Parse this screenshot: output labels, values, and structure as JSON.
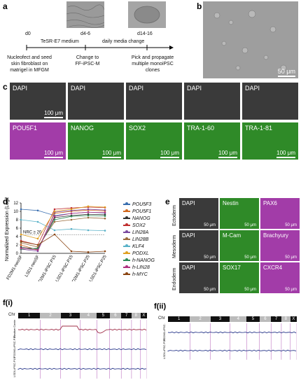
{
  "panels": {
    "a": "a",
    "b": "b",
    "c": "c",
    "d": "d",
    "e": "e",
    "f1": "f(i)",
    "f2": "f(ii)"
  },
  "timeline": {
    "points": [
      "d0",
      "d4-6",
      "d14-16"
    ],
    "medium": "TeSR-E7 medium",
    "daily": "daily media change",
    "step1": [
      "Nucleofect and seed",
      "skin fibroblast on",
      "matrigel in MFGM"
    ],
    "step2": [
      "Change to",
      "FF-iPSC-M"
    ],
    "step3": [
      "Pick and propagate",
      "multiple monoiPSC",
      "clones"
    ]
  },
  "panel_b": {
    "scale": "50 μm"
  },
  "panel_c": {
    "top": [
      "DAPI",
      "DAPI",
      "DAPI",
      "DAPI",
      "DAPI"
    ],
    "bottom": [
      "POU5F1",
      "NANOG",
      "SOX2",
      "TRA-1-60",
      "TRA-1-81"
    ],
    "scale": "100 μm"
  },
  "panel_e": {
    "rows": [
      {
        "name": "Ectoderm",
        "labels": [
          "DAPI",
          "Nestin",
          "PAX6"
        ]
      },
      {
        "name": "Mesoderm",
        "labels": [
          "DAPI",
          "M-Cam",
          "Brachyury"
        ]
      },
      {
        "name": "Endoderm",
        "labels": [
          "DAPI",
          "SOX17",
          "CXCR4"
        ]
      }
    ],
    "scale": "50 μm"
  },
  "colors": {
    "magenta": "#a23ca8",
    "green": "#2f8a28",
    "gray": "#3a3a3a"
  },
  "chart_data": {
    "type": "line",
    "ylabel": "Normalized Expression (Log2)",
    "categories": [
      "FD2M1-neoSF",
      "LSD1-neoSF",
      "FD2M1-iPSC.P15",
      "LSD1-iPSC.P15",
      "FD2M1-iPSC.P25",
      "LSD1-iPSC.P25"
    ],
    "ylim": [
      0,
      12
    ],
    "yticks": [
      "0",
      "2",
      "4",
      "6",
      "8",
      "10",
      "12"
    ],
    "annotation": "NRC ≥ 20",
    "series": [
      {
        "name": "POU5F3",
        "color": "#3a6fb0",
        "values": [
          10.5,
          10.2,
          9.0,
          9.5,
          9.8,
          9.6
        ]
      },
      {
        "name": "POU5F1",
        "color": "#d2691e",
        "values": [
          2.0,
          0.8,
          9.5,
          10.0,
          10.3,
          10.1
        ]
      },
      {
        "name": "NANOG",
        "color": "#333333",
        "values": [
          1.5,
          1.0,
          8.5,
          9.0,
          9.3,
          9.2
        ]
      },
      {
        "name": "SOX2",
        "color": "#c02f2f",
        "values": [
          3.0,
          2.0,
          10.5,
          10.8,
          11.0,
          10.9
        ]
      },
      {
        "name": "LIN28A",
        "color": "#7a4aa0",
        "values": [
          1.0,
          0.5,
          9.8,
          10.2,
          10.5,
          10.3
        ]
      },
      {
        "name": "LIN28B",
        "color": "#9a6b3c",
        "values": [
          2.5,
          1.5,
          7.5,
          8.0,
          8.5,
          8.3
        ]
      },
      {
        "name": "KLF4",
        "color": "#5ab2c8",
        "values": [
          8.0,
          7.5,
          5.5,
          5.8,
          5.5,
          5.4
        ]
      },
      {
        "name": "PODXL",
        "color": "#e0a020",
        "values": [
          4.5,
          3.5,
          10.0,
          10.5,
          11.2,
          11.0
        ]
      },
      {
        "name": "h-NANOG",
        "color": "#2e8b57",
        "values": [
          1.0,
          1.2,
          8.0,
          8.8,
          9.0,
          8.9
        ]
      },
      {
        "name": "h-LIN28",
        "color": "#b03080",
        "values": [
          1.2,
          0.8,
          8.8,
          9.5,
          9.8,
          9.7
        ]
      },
      {
        "name": "h-MYC",
        "color": "#8b4513",
        "values": [
          2.8,
          2.0,
          4.5,
          0.5,
          0.3,
          0.5
        ]
      }
    ]
  },
  "karyo": {
    "f1": {
      "chr_label": "Chr",
      "chromosomes": [
        "1",
        "2",
        "3",
        "4",
        "5",
        "6",
        "7",
        "8",
        "X"
      ],
      "tracks": [
        "Positive Control",
        "FD2M1-iPSC.P15",
        "LSD1-iPSC.P15"
      ]
    },
    "f2": {
      "chr_label": "Chr",
      "chromosomes": [
        "1",
        "2",
        "3",
        "4",
        "5",
        "6",
        "7",
        "8",
        "X"
      ],
      "tracks": [
        "FD2M1-iPSC.P25",
        "LSD1-iPSC.P25"
      ]
    }
  }
}
